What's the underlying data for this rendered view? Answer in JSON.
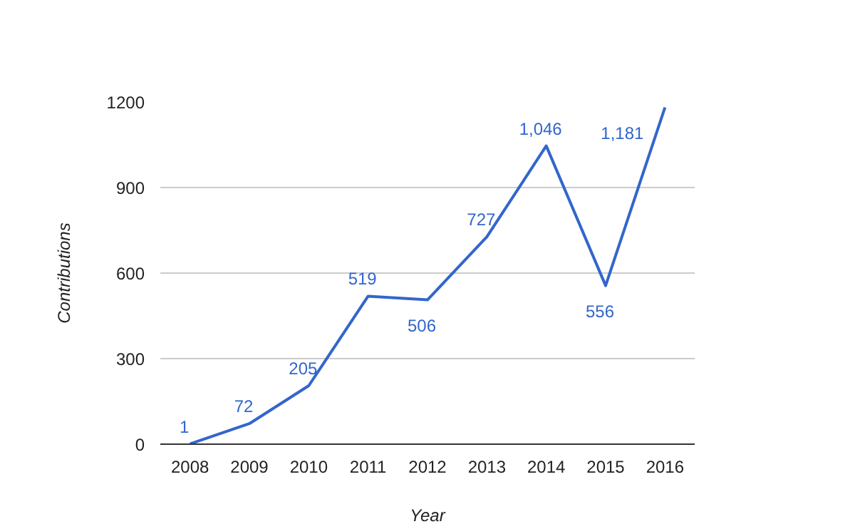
{
  "chart_data": {
    "type": "line",
    "xlabel": "Year",
    "ylabel": "Contributions",
    "categories": [
      "2008",
      "2009",
      "2010",
      "2011",
      "2012",
      "2013",
      "2014",
      "2015",
      "2016"
    ],
    "series": [
      {
        "color": "#3366cc",
        "values": [
          1,
          72,
          205,
          519,
          506,
          727,
          1046,
          556,
          1181
        ],
        "value_labels": [
          "1",
          "72",
          "205",
          "519",
          "506",
          "727",
          "1,046",
          "556",
          "1,181"
        ]
      }
    ],
    "ylim": [
      0,
      1200
    ],
    "yticks": [
      0,
      300,
      600,
      900,
      1200
    ],
    "grid": "y",
    "marker": "none",
    "line_style": "solid"
  }
}
